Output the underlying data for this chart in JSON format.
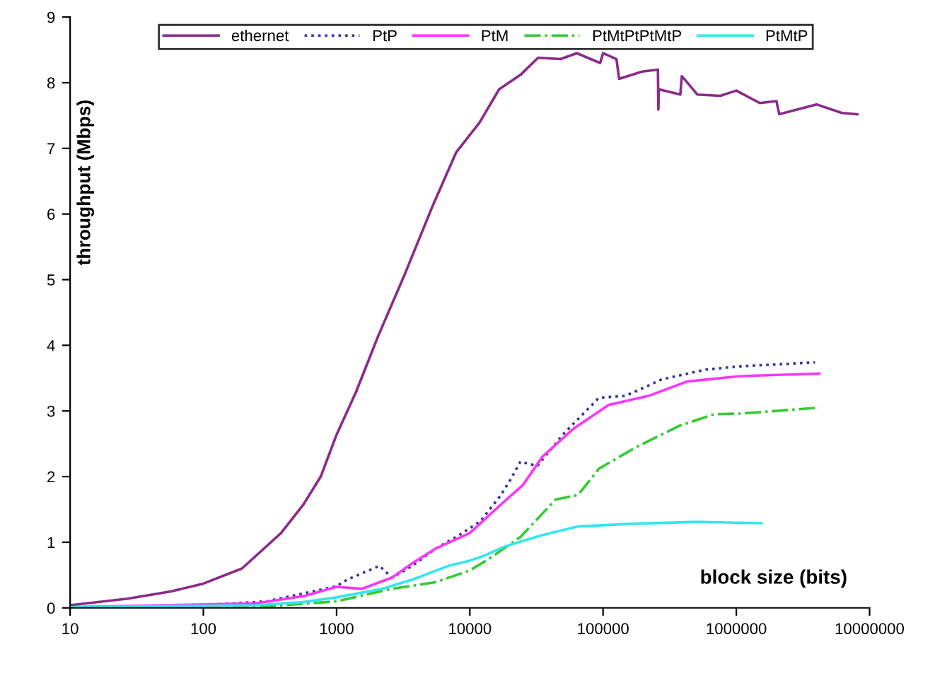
{
  "chart_data": {
    "type": "line",
    "xlabel": "block size (bits)",
    "ylabel": "throughput (Mbps)",
    "log": "x",
    "xlim": [
      10,
      10000000
    ],
    "xticks": [
      10,
      100,
      1000,
      10000,
      100000,
      1000000,
      10000000
    ],
    "ylim": [
      0,
      9
    ],
    "yticks": [
      0,
      1,
      2,
      3,
      4,
      5,
      6,
      7,
      8,
      9
    ],
    "grid": false,
    "legend": "top",
    "marker": "none",
    "series": [
      {
        "name": "ethernet",
        "color": "#8b2a8b",
        "line_style": "solid",
        "x": [
          10,
          27,
          57,
          100,
          195,
          383,
          562,
          760,
          1000,
          1400,
          2050,
          3230,
          5300,
          7900,
          11800,
          16600,
          24000,
          32500,
          48000,
          63500,
          95000,
          100000,
          126000,
          132000,
          196000,
          258000,
          260000,
          262000,
          380000,
          390000,
          510000,
          760000,
          1000000,
          1500000,
          2000000,
          2100000,
          4000000,
          6200000,
          8100000
        ],
        "values": [
          0.04,
          0.14,
          0.25,
          0.37,
          0.6,
          1.14,
          1.57,
          2.0,
          2.64,
          3.29,
          4.14,
          5.07,
          6.14,
          6.94,
          7.39,
          7.9,
          8.12,
          8.38,
          8.36,
          8.45,
          8.3,
          8.45,
          8.36,
          8.06,
          8.17,
          8.2,
          7.59,
          7.9,
          7.82,
          8.1,
          7.82,
          7.8,
          7.88,
          7.69,
          7.72,
          7.52,
          7.67,
          7.54,
          7.52
        ]
      },
      {
        "name": "PtP",
        "color": "#333399",
        "line_style": "dotted",
        "x": [
          10,
          100,
          300,
          1000,
          1200,
          2100,
          2600,
          3700,
          5500,
          8200,
          12000,
          17000,
          20000,
          24000,
          32000,
          51000,
          93000,
          148000,
          275000,
          590000,
          1070000,
          3900000
        ],
        "values": [
          0.01,
          0.04,
          0.1,
          0.33,
          0.43,
          0.64,
          0.46,
          0.64,
          0.9,
          1.1,
          1.32,
          1.71,
          1.94,
          2.23,
          2.16,
          2.66,
          3.2,
          3.23,
          3.48,
          3.63,
          3.68,
          3.74
        ]
      },
      {
        "name": "PtM",
        "color": "#ff33ff",
        "line_style": "solid",
        "x": [
          10,
          250,
          570,
          1000,
          1550,
          2600,
          3700,
          5500,
          10000,
          17000,
          25000,
          35000,
          60000,
          110000,
          220000,
          430000,
          1070000,
          4200000
        ],
        "values": [
          0.01,
          0.07,
          0.18,
          0.32,
          0.29,
          0.46,
          0.68,
          0.9,
          1.14,
          1.57,
          1.87,
          2.3,
          2.73,
          3.09,
          3.23,
          3.45,
          3.53,
          3.57
        ]
      },
      {
        "name": "PtMtPtPtMtP",
        "color": "#33cc33",
        "line_style": "dashdot",
        "x": [
          10,
          250,
          1000,
          2600,
          5500,
          10000,
          14000,
          24000,
          44000,
          65000,
          93000,
          174000,
          370000,
          680000,
          1070000,
          4200000
        ],
        "values": [
          0.0,
          0.01,
          0.1,
          0.29,
          0.39,
          0.57,
          0.75,
          1.08,
          1.65,
          1.72,
          2.12,
          2.44,
          2.77,
          2.95,
          2.96,
          3.05
        ]
      },
      {
        "name": "PtMtP",
        "color": "#33e6ee",
        "line_style": "solid",
        "x": [
          10,
          250,
          570,
          1000,
          2200,
          3700,
          6900,
          10000,
          13000,
          18000,
          35000,
          65000,
          160000,
          500000,
          1550000
        ],
        "values": [
          0.01,
          0.04,
          0.09,
          0.16,
          0.29,
          0.43,
          0.64,
          0.72,
          0.8,
          0.93,
          1.11,
          1.24,
          1.28,
          1.31,
          1.29
        ]
      }
    ]
  }
}
